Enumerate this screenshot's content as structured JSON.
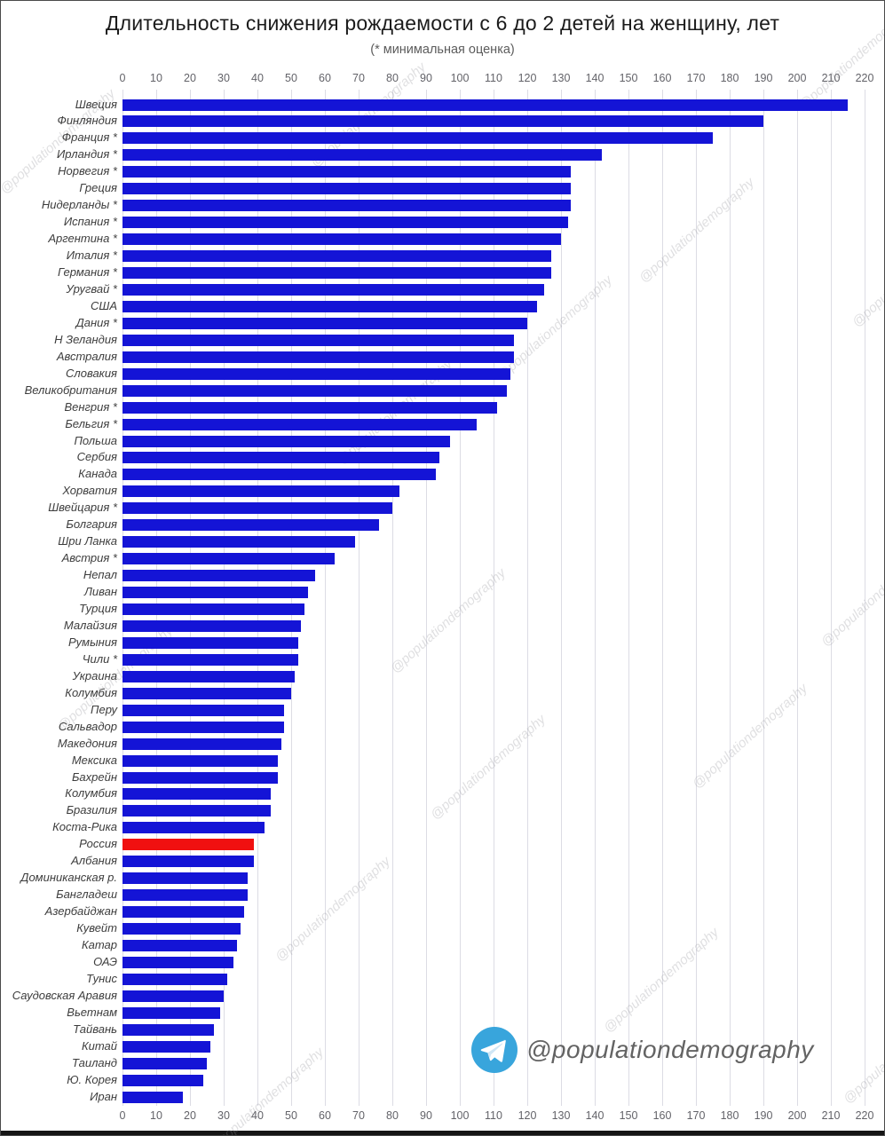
{
  "header": {
    "title": "Длительность снижения рождаемости с 6 до 2 детей на женщину, лет",
    "subtitle": "(* минимальная оценка)"
  },
  "watermark": {
    "handle": "@populationdemography",
    "icon": "telegram-icon",
    "icon_color": "#38a5dc"
  },
  "colors": {
    "bar": "#1414d6",
    "highlight": "#f01010",
    "grid": "#dcdce4",
    "axis_text": "#636369",
    "label_text": "#3d3d3d"
  },
  "chart_data": {
    "type": "bar",
    "orientation": "horizontal",
    "title": "Длительность снижения рождаемости с 6 до 2 детей на женщину, лет",
    "subtitle": "(* минимальная оценка)",
    "xlabel": "",
    "ylabel": "",
    "xlim": [
      0,
      220
    ],
    "ticks": [
      0,
      10,
      20,
      30,
      40,
      50,
      60,
      70,
      80,
      90,
      100,
      110,
      120,
      130,
      140,
      150,
      160,
      170,
      180,
      190,
      200,
      210,
      220
    ],
    "grid": true,
    "axis_labels_positions": [
      "top",
      "bottom"
    ],
    "categories": [
      "Швеция",
      "Финляндия",
      "Франция *",
      "Ирландия *",
      "Норвегия *",
      "Греция",
      "Нидерланды *",
      "Испания *",
      "Аргентина *",
      "Италия *",
      "Германия *",
      "Уругвай *",
      "США",
      "Дания *",
      "Н Зеландия",
      "Австралия",
      "Словакия",
      "Великобритания",
      "Венгрия *",
      "Бельгия *",
      "Польша",
      "Сербия",
      "Канада",
      "Хорватия",
      "Швейцария *",
      "Болгария",
      "Шри Ланка",
      "Австрия *",
      "Непал",
      "Ливан",
      "Турция",
      "Малайзия",
      "Румыния",
      "Чили *",
      "Украина",
      "Колумбия",
      "Перу",
      "Сальвадор",
      "Македония",
      "Мексика",
      "Бахрейн",
      "Колумбия",
      "Бразилия",
      "Коста-Рика",
      "Россия",
      "Албания",
      "Доминиканская р.",
      "Бангладеш",
      "Азербайджан",
      "Кувейт",
      "Катар",
      "ОАЭ",
      "Тунис",
      "Саудовская Аравия",
      "Вьетнам",
      "Тайвань",
      "Китай",
      "Таиланд",
      "Ю. Корея",
      "Иран"
    ],
    "values": [
      215,
      190,
      175,
      142,
      133,
      133,
      133,
      132,
      130,
      127,
      127,
      125,
      123,
      120,
      116,
      116,
      115,
      114,
      111,
      105,
      97,
      94,
      93,
      82,
      80,
      76,
      69,
      63,
      57,
      55,
      54,
      53,
      52,
      52,
      51,
      50,
      48,
      48,
      47,
      46,
      46,
      44,
      44,
      42,
      39,
      39,
      37,
      37,
      36,
      35,
      34,
      33,
      31,
      30,
      29,
      27,
      26,
      25,
      24,
      18
    ],
    "highlight_index": 44,
    "bar_color": "#1414d6",
    "highlight_color": "#f01010"
  }
}
